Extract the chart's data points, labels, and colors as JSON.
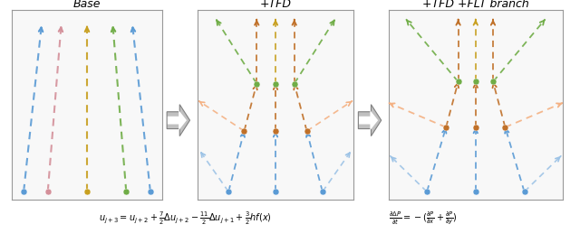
{
  "title1": "Base",
  "title2": "+TFD",
  "title3": "+TFD +FLT branch",
  "eq1": "$u_{j+3} = u_{j+2} + \\frac{7}{2}\\Delta u_{j+2} - \\frac{11}{2}\\Delta u_{j+1} + \\frac{3}{2}hf(x)$",
  "eq2": "$\\frac{\\partial \\Delta P}{\\partial t} = -(\\frac{\\partial P}{\\partial x} + \\frac{\\partial P}{\\partial y})$",
  "blue": "#5B9BD5",
  "pink": "#D4909A",
  "green": "#70AD47",
  "gold": "#C8A020",
  "orange": "#C07028",
  "light_blue": "#9DC3E6",
  "light_orange": "#F4B183"
}
